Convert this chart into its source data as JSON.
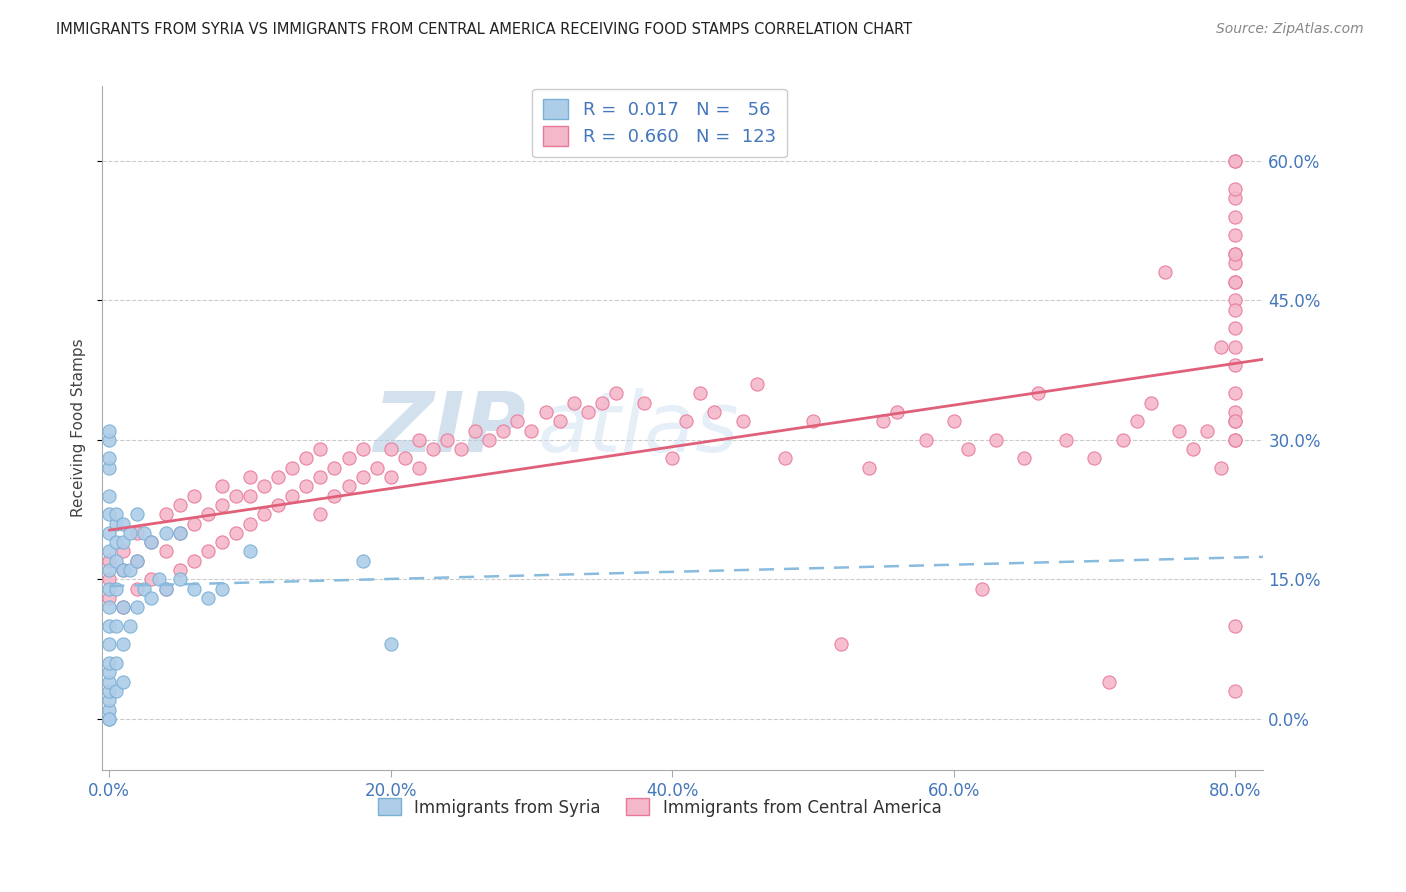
{
  "title": "IMMIGRANTS FROM SYRIA VS IMMIGRANTS FROM CENTRAL AMERICA RECEIVING FOOD STAMPS CORRELATION CHART",
  "source": "Source: ZipAtlas.com",
  "ylabel": "Receiving Food Stamps",
  "syria_R": "0.017",
  "syria_N": "56",
  "ca_R": "0.660",
  "ca_N": "123",
  "syria_color": "#aecde8",
  "syria_edge": "#7aafd4",
  "ca_color": "#f4b8cb",
  "ca_edge": "#e87898",
  "syria_line_color": "#88bbdd",
  "ca_line_color": "#e0607a",
  "watermark_zip": "ZIP",
  "watermark_atlas": "atlas",
  "legend_syria_label": "Immigrants from Syria",
  "legend_ca_label": "Immigrants from Central America",
  "xlim": [
    0.0,
    0.82
  ],
  "ylim": [
    -0.055,
    0.68
  ],
  "xticks": [
    0.0,
    0.2,
    0.4,
    0.6,
    0.8
  ],
  "yticks": [
    0.0,
    0.15,
    0.3,
    0.45,
    0.6
  ],
  "syria_x": [
    0.0,
    0.0,
    0.0,
    0.0,
    0.0,
    0.0,
    0.0,
    0.0,
    0.0,
    0.0,
    0.0,
    0.0,
    0.0,
    0.0,
    0.0,
    0.0,
    0.0,
    0.0,
    0.0,
    0.0,
    0.0,
    0.005,
    0.005,
    0.005,
    0.005,
    0.005,
    0.005,
    0.005,
    0.005,
    0.01,
    0.01,
    0.01,
    0.01,
    0.01,
    0.01,
    0.015,
    0.015,
    0.015,
    0.02,
    0.02,
    0.02,
    0.025,
    0.025,
    0.03,
    0.03,
    0.035,
    0.04,
    0.04,
    0.05,
    0.05,
    0.06,
    0.07,
    0.08,
    0.1,
    0.18,
    0.2
  ],
  "syria_y": [
    0.0,
    0.01,
    0.02,
    0.03,
    0.04,
    0.05,
    0.06,
    0.08,
    0.1,
    0.12,
    0.14,
    0.16,
    0.18,
    0.2,
    0.22,
    0.24,
    0.27,
    0.28,
    0.3,
    0.31,
    0.0,
    0.03,
    0.06,
    0.1,
    0.14,
    0.17,
    0.19,
    0.21,
    0.22,
    0.04,
    0.08,
    0.12,
    0.16,
    0.19,
    0.21,
    0.1,
    0.16,
    0.2,
    0.12,
    0.17,
    0.22,
    0.14,
    0.2,
    0.13,
    0.19,
    0.15,
    0.14,
    0.2,
    0.15,
    0.2,
    0.14,
    0.13,
    0.14,
    0.18,
    0.17,
    0.08
  ],
  "ca_x": [
    0.0,
    0.0,
    0.0,
    0.01,
    0.01,
    0.01,
    0.02,
    0.02,
    0.02,
    0.03,
    0.03,
    0.04,
    0.04,
    0.04,
    0.05,
    0.05,
    0.05,
    0.06,
    0.06,
    0.06,
    0.07,
    0.07,
    0.08,
    0.08,
    0.08,
    0.09,
    0.09,
    0.1,
    0.1,
    0.1,
    0.11,
    0.11,
    0.12,
    0.12,
    0.13,
    0.13,
    0.14,
    0.14,
    0.15,
    0.15,
    0.15,
    0.16,
    0.16,
    0.17,
    0.17,
    0.18,
    0.18,
    0.19,
    0.2,
    0.2,
    0.21,
    0.22,
    0.22,
    0.23,
    0.24,
    0.25,
    0.26,
    0.27,
    0.28,
    0.29,
    0.3,
    0.31,
    0.32,
    0.33,
    0.34,
    0.35,
    0.36,
    0.38,
    0.4,
    0.41,
    0.42,
    0.43,
    0.45,
    0.46,
    0.48,
    0.5,
    0.52,
    0.54,
    0.55,
    0.56,
    0.58,
    0.6,
    0.61,
    0.62,
    0.63,
    0.65,
    0.66,
    0.68,
    0.7,
    0.71,
    0.72,
    0.73,
    0.74,
    0.75,
    0.76,
    0.77,
    0.78,
    0.79,
    0.79,
    0.8,
    0.8,
    0.8,
    0.8,
    0.8,
    0.8,
    0.8,
    0.8,
    0.8,
    0.8,
    0.8,
    0.8,
    0.8,
    0.8,
    0.8,
    0.8,
    0.8,
    0.8,
    0.8,
    0.8,
    0.8,
    0.8,
    0.8,
    0.8
  ],
  "ca_y": [
    0.13,
    0.15,
    0.17,
    0.12,
    0.16,
    0.18,
    0.14,
    0.17,
    0.2,
    0.15,
    0.19,
    0.14,
    0.18,
    0.22,
    0.16,
    0.2,
    0.23,
    0.17,
    0.21,
    0.24,
    0.18,
    0.22,
    0.19,
    0.23,
    0.25,
    0.2,
    0.24,
    0.21,
    0.24,
    0.26,
    0.22,
    0.25,
    0.23,
    0.26,
    0.24,
    0.27,
    0.25,
    0.28,
    0.22,
    0.26,
    0.29,
    0.24,
    0.27,
    0.25,
    0.28,
    0.26,
    0.29,
    0.27,
    0.26,
    0.29,
    0.28,
    0.27,
    0.3,
    0.29,
    0.3,
    0.29,
    0.31,
    0.3,
    0.31,
    0.32,
    0.31,
    0.33,
    0.32,
    0.34,
    0.33,
    0.34,
    0.35,
    0.34,
    0.28,
    0.32,
    0.35,
    0.33,
    0.32,
    0.36,
    0.28,
    0.32,
    0.08,
    0.27,
    0.32,
    0.33,
    0.3,
    0.32,
    0.29,
    0.14,
    0.3,
    0.28,
    0.35,
    0.3,
    0.28,
    0.04,
    0.3,
    0.32,
    0.34,
    0.48,
    0.31,
    0.29,
    0.31,
    0.4,
    0.27,
    0.3,
    0.32,
    0.5,
    0.56,
    0.45,
    0.33,
    0.35,
    0.3,
    0.32,
    0.38,
    0.4,
    0.42,
    0.44,
    0.47,
    0.49,
    0.6,
    0.52,
    0.54,
    0.5,
    0.03,
    0.47,
    0.57,
    0.1,
    0.6
  ]
}
